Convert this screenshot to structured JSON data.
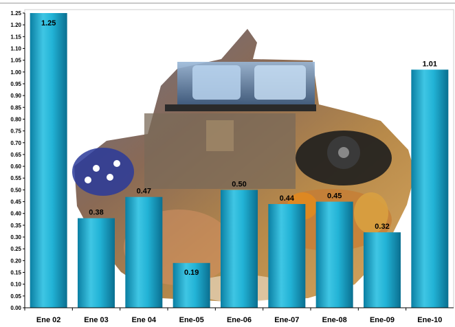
{
  "chart_data": {
    "type": "bar",
    "categories": [
      "Ene 02",
      "Ene 03",
      "Ene 04",
      "Ene-05",
      "Ene-06",
      "Ene-07",
      "Ene-08",
      "Ene-09",
      "Ene-10"
    ],
    "values": [
      1.25,
      0.38,
      0.47,
      0.19,
      0.5,
      0.44,
      0.45,
      0.32,
      1.01
    ],
    "data_labels": [
      "1.25",
      "0.38",
      "0.47",
      "0.19",
      "0.50",
      "0.44",
      "0.45",
      "0.32",
      "1.01"
    ],
    "ylim": [
      0,
      1.25
    ],
    "yticks": [
      "0.00",
      "0.05",
      "0.10",
      "0.15",
      "0.20",
      "0.25",
      "0.30",
      "0.35",
      "0.40",
      "0.45",
      "0.50",
      "0.55",
      "0.60",
      "0.65",
      "0.70",
      "0.75",
      "0.80",
      "0.85",
      "0.90",
      "0.95",
      "1.00",
      "1.05",
      "1.10",
      "1.15",
      "1.20",
      "1.25"
    ],
    "title": "",
    "xlabel": "",
    "ylabel": "",
    "grid": false,
    "bar_color": "#1aa8c8",
    "background_image": "photo collage of household items (bottles, telephone, bedroom, fruit)"
  }
}
